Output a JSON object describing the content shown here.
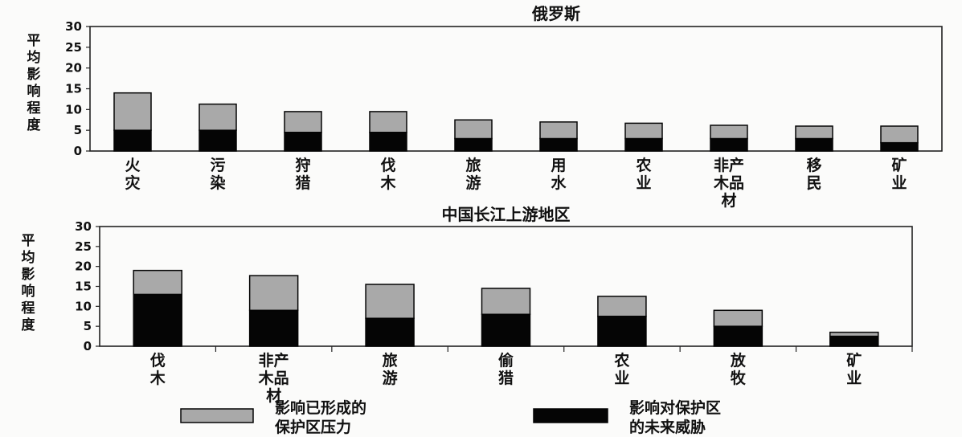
{
  "colors": {
    "formed_pressure": "#a9a9a9",
    "future_threat": "#050505",
    "frame": "#222222"
  },
  "legend": {
    "formed": [
      "影响已形成的",
      "保护区压力"
    ],
    "threat": [
      "影响对保护区",
      "的未来威胁"
    ]
  },
  "chart_data": [
    {
      "type": "bar",
      "title": "俄罗斯",
      "ylabel": "平均影响程度",
      "ylim": [
        0,
        30
      ],
      "yticks": [
        0,
        5,
        10,
        15,
        20,
        25,
        30
      ],
      "categories": [
        "火灾",
        "污染",
        "狩猎",
        "伐木",
        "旅游",
        "用水",
        "农业",
        "非产木品材",
        "移民",
        "矿业"
      ],
      "category_lines": [
        [
          "火",
          "灾"
        ],
        [
          "污",
          "染"
        ],
        [
          "狩",
          "猎"
        ],
        [
          "伐",
          "木"
        ],
        [
          "旅",
          "游"
        ],
        [
          "用",
          "水"
        ],
        [
          "农",
          "业"
        ],
        [
          "非产",
          "木品",
          "材"
        ],
        [
          "移",
          "民"
        ],
        [
          "矿",
          "业"
        ]
      ],
      "series": [
        {
          "name": "的未来威胁",
          "values": [
            5,
            5,
            4.5,
            4.5,
            3,
            3,
            3,
            3,
            3,
            2
          ]
        },
        {
          "name": "保护区压力",
          "values": [
            9,
            6.3,
            5,
            5,
            4.5,
            4,
            3.7,
            3.2,
            3,
            4
          ]
        }
      ]
    },
    {
      "type": "bar",
      "title": "中国长江上游地区",
      "ylabel": "平均影响程度",
      "ylim": [
        0,
        30
      ],
      "yticks": [
        0,
        5,
        10,
        15,
        20,
        25,
        30
      ],
      "categories": [
        "伐木",
        "非产木品材",
        "旅游",
        "偷猎",
        "农业",
        "放牧",
        "矿业"
      ],
      "category_lines": [
        [
          "伐",
          "木"
        ],
        [
          "非产",
          "木品",
          "材"
        ],
        [
          "旅",
          "游"
        ],
        [
          "偷",
          "猎"
        ],
        [
          "农",
          "业"
        ],
        [
          "放",
          "牧"
        ],
        [
          "矿",
          "业"
        ]
      ],
      "series": [
        {
          "name": "的未来威胁",
          "values": [
            13,
            9,
            7,
            8,
            7.5,
            5,
            2.5
          ]
        },
        {
          "name": "保护区压力",
          "values": [
            6,
            8.7,
            8.5,
            6.5,
            5,
            4,
            1
          ]
        }
      ]
    }
  ]
}
